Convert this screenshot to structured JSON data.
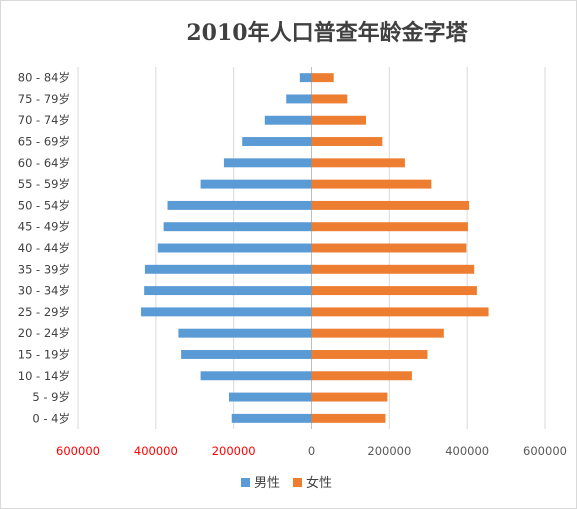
{
  "chart_data": {
    "type": "bar",
    "orientation": "horizontal",
    "title": "2010年人口普查年龄金字塔",
    "categories": [
      "0 - 4岁",
      "5 - 9岁",
      "10 - 14岁",
      "15 - 19岁",
      "20 - 24岁",
      "25 - 29岁",
      "30 - 34岁",
      "35 - 39岁",
      "40 - 44岁",
      "45 - 49岁",
      "50 - 54岁",
      "55 - 59岁",
      "60 - 64岁",
      "65 - 69岁",
      "70 - 74岁",
      "75 - 79岁",
      "80 - 84岁"
    ],
    "series": [
      {
        "name": "男性",
        "color": "#5b9bd5",
        "values": [
          -205000,
          -212000,
          -285000,
          -335000,
          -342000,
          -438000,
          -430000,
          -428000,
          -395000,
          -380000,
          -370000,
          -285000,
          -225000,
          -178000,
          -120000,
          -65000,
          -30000
        ]
      },
      {
        "name": "女性",
        "color": "#ed7d31",
        "values": [
          190000,
          195000,
          258000,
          298000,
          340000,
          455000,
          425000,
          418000,
          398000,
          402000,
          405000,
          308000,
          240000,
          182000,
          140000,
          92000,
          57000
        ]
      }
    ],
    "xlim": [
      -600000,
      600000
    ],
    "xticks": [
      -600000,
      -400000,
      -200000,
      0,
      200000,
      400000,
      600000
    ],
    "xtick_labels": [
      "600000",
      "400000",
      "200000",
      "0",
      "200000",
      "400000",
      "600000"
    ],
    "negative_tick_color": "#ff0000",
    "tick_color": "#595959",
    "grid": "vertical",
    "legend": "bottom-center"
  }
}
